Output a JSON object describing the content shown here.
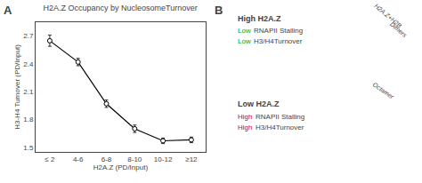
{
  "chart_data": {
    "type": "line",
    "title": "H2A.Z Occupancy by NucleosomeTurnover",
    "xlabel": "H2A.Z (PD/Input)",
    "ylabel": "H3-H4 Turnover (PD/Input)",
    "categories": [
      "≤ 2",
      "4-6",
      "6-8",
      "8-10",
      "10-12",
      "≥12"
    ],
    "values": [
      2.65,
      2.42,
      1.97,
      1.7,
      1.57,
      1.58
    ],
    "errors": [
      0.06,
      0.04,
      0.04,
      0.04,
      0.03,
      0.03
    ],
    "color": "#000000",
    "marker": "circle",
    "ylim": [
      1.45,
      2.85
    ],
    "yticks": [
      1.5,
      1.8,
      2.1,
      2.4,
      2.7
    ],
    "grid": false,
    "annotations": [
      {
        "text": "A"
      },
      {
        "text": "B"
      },
      {
        "text": "High H2A.Z"
      },
      {
        "text": "Low",
        "color": "#00aa00"
      },
      {
        "text": "RNAPII Stalling"
      },
      {
        "text": "Low",
        "color": "#00aa00"
      },
      {
        "text": "H3/H4Turnover"
      },
      {
        "text": "H2A.Z+H2B"
      },
      {
        "text": "Dimers"
      },
      {
        "text": "Low H2A.Z"
      },
      {
        "text": "High",
        "color": "#dd0000"
      },
      {
        "text": "RNAPII Stalling"
      },
      {
        "text": "High",
        "color": "#dd0000"
      },
      {
        "text": "H3/H4Turnover"
      },
      {
        "text": "Octamer"
      }
    ]
  }
}
